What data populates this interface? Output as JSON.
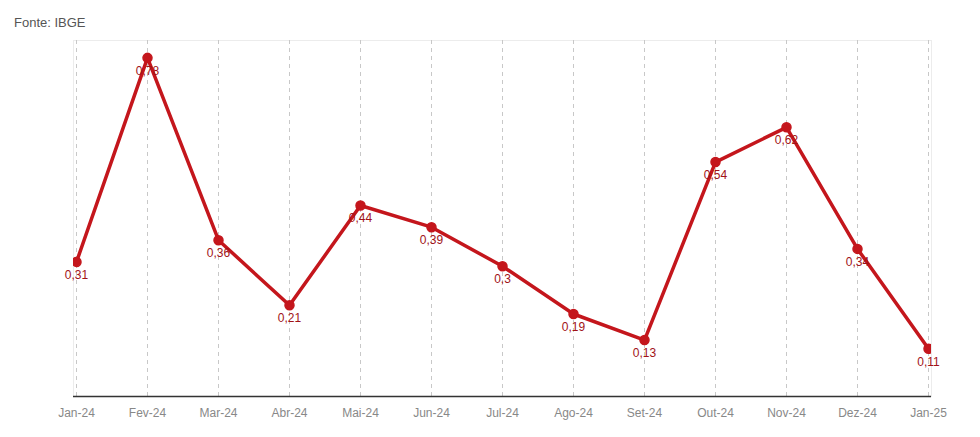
{
  "chart_data": {
    "type": "line",
    "caption": "Fonte: IBGE",
    "categories": [
      "Jan-24",
      "Fev-24",
      "Mar-24",
      "Abr-24",
      "Mai-24",
      "Jun-24",
      "Jul-24",
      "Ago-24",
      "Set-24",
      "Out-24",
      "Nov-24",
      "Dez-24",
      "Jan-25"
    ],
    "values": [
      0.31,
      0.78,
      0.36,
      0.21,
      0.44,
      0.39,
      0.3,
      0.19,
      0.13,
      0.54,
      0.62,
      0.34,
      0.11
    ],
    "value_labels": [
      "0,31",
      "0,78",
      "0,36",
      "0,21",
      "0,44",
      "0,39",
      "0,3",
      "0,19",
      "0,13",
      "0,54",
      "0,62",
      "0,34",
      "0,11"
    ],
    "color": "#c4161c",
    "ylim": [
      0,
      0.82
    ],
    "grid": "x",
    "data_labels": true,
    "tick_labels": "x",
    "marker": "circle"
  }
}
